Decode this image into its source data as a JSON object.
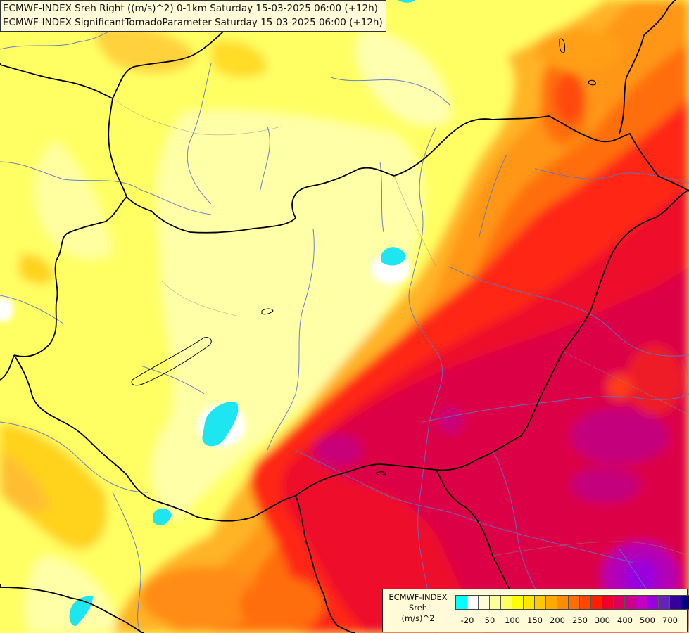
{
  "title": {
    "line1": "ECMWF-INDEX Sreh Right ((m/s)^2) 0-1km Saturday 15-03-2025 06:00 (+12h)",
    "line2": "ECMWF-INDEX SignificantTornadoParameter Saturday 15-03-2025 06:00 (+12h)"
  },
  "legend": {
    "title": [
      "ECMWF-INDEX",
      "Sreh",
      "(m/s)^2"
    ],
    "colors": [
      "#00ffff",
      "#ffffff",
      "#fffbd8",
      "#ffff9b",
      "#ffff64",
      "#ffff00",
      "#ffe600",
      "#ffc800",
      "#ffaa00",
      "#ff8c00",
      "#ff6e00",
      "#ff4600",
      "#ff1e00",
      "#ee0028",
      "#dd005a",
      "#cc0088",
      "#c200c2",
      "#9900dd",
      "#6622bb",
      "#330099",
      "#000080"
    ],
    "tick_labels": [
      "-20",
      "50",
      "100",
      "150",
      "200",
      "250",
      "300",
      "400",
      "500",
      "700"
    ]
  },
  "colors": {
    "field_base": "#ffff64",
    "border": "#000000",
    "river": "#5b74c9"
  }
}
